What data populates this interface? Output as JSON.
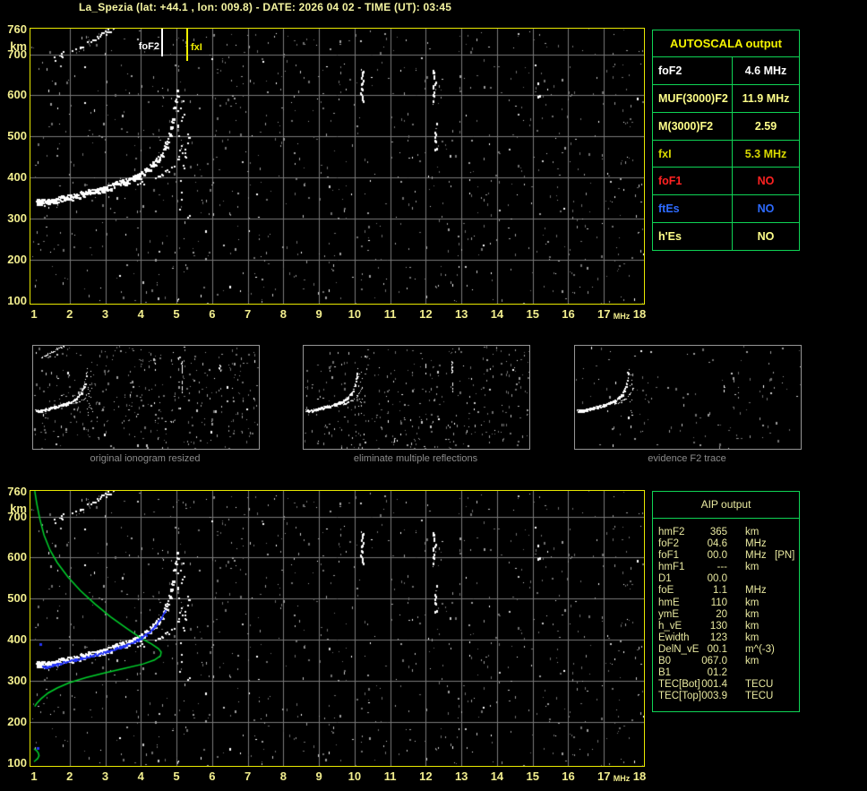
{
  "title": "La_Spezia (lat: +44.1 , lon: 009.8) - DATE: 2026 04 02 - TIME (UT): 03:45",
  "colors": {
    "background": "#000000",
    "title": "#f4f4a0",
    "plot_border": "#e9e900",
    "grid": "#7a7a7a",
    "tick_label": "#f2ee8e",
    "trace_white": "#ffffff",
    "noise_gray": "#9c9c9c",
    "table_border": "#0fd455",
    "autoscala_header": "#f4f400",
    "aip_text": "#e9e9a0",
    "caption_gray": "#8c8c8c",
    "profile_green": "#00d22c",
    "restored_blue": "#2535f5",
    "fof2_marker": "#ffffff",
    "fxi_marker": "#f0f000",
    "red": "#ff2222",
    "blue": "#2e6bff",
    "pale_yellow": "#ffff8a",
    "dark_yellow": "#d8d800"
  },
  "autoscala": {
    "title": "AUTOSCALA output",
    "rows": [
      {
        "label": "foF2",
        "value": "4.6 MHz",
        "color": "#ffffff"
      },
      {
        "label": "MUF(3000)F2",
        "value": "11.9 MHz",
        "color": "#ffff8a"
      },
      {
        "label": "M(3000)F2",
        "value": "2.59",
        "color": "#ffff8a"
      },
      {
        "label": "fxI",
        "value": "5.3 MHz",
        "color": "#d8d800"
      },
      {
        "label": "foF1",
        "value": "NO",
        "color": "#ff2222"
      },
      {
        "label": "ftEs",
        "value": "NO",
        "color": "#2e6bff"
      },
      {
        "label": "h'Es",
        "value": "NO",
        "color": "#ffff8a"
      }
    ]
  },
  "aip": {
    "title": "AIP output",
    "rows": [
      {
        "name": "hmF2",
        "value": "365",
        "unit": "km",
        "extra": ""
      },
      {
        "name": "foF2",
        "value": "04.6",
        "unit": "MHz",
        "extra": ""
      },
      {
        "name": "foF1",
        "value": "00.0",
        "unit": "MHz",
        "extra": "[PN]"
      },
      {
        "name": "hmF1",
        "value": "---",
        "unit": "km",
        "extra": ""
      },
      {
        "name": "D1",
        "value": "00.0",
        "unit": "",
        "extra": ""
      },
      {
        "name": "foE",
        "value": "1.1",
        "unit": "MHz",
        "extra": ""
      },
      {
        "name": "hmE",
        "value": "110",
        "unit": "km",
        "extra": ""
      },
      {
        "name": "ymE",
        "value": "20",
        "unit": "km",
        "extra": ""
      },
      {
        "name": "h_vE",
        "value": "130",
        "unit": "km",
        "extra": ""
      },
      {
        "name": "Ewidth",
        "value": "123",
        "unit": "km",
        "extra": ""
      },
      {
        "name": "DelN_vE",
        "value": "00.1",
        "unit": "m^(-3)",
        "extra": ""
      },
      {
        "name": "B0",
        "value": "067.0",
        "unit": "km",
        "extra": ""
      },
      {
        "name": "B1",
        "value": "01.2",
        "unit": "",
        "extra": ""
      },
      {
        "name": "TEC[Bot]",
        "value": "001.4",
        "unit": "TECU",
        "extra": ""
      },
      {
        "name": "TEC[Top]",
        "value": "003.9",
        "unit": "TECU",
        "extra": ""
      }
    ]
  },
  "thumbnails": [
    {
      "caption": "original ionogram resized"
    },
    {
      "caption": "eliminate multiple reflections"
    },
    {
      "caption": "evidence F2 trace"
    }
  ],
  "chart_data": {
    "type": "scatter",
    "title": "ionogram",
    "x_label": "MHz",
    "y_label": "km",
    "x_range": [
      1,
      18
    ],
    "y_range": [
      100,
      760
    ],
    "x_ticks": [
      "1",
      "2",
      "3",
      "4",
      "5",
      "6",
      "7",
      "8",
      "9",
      "10",
      "11",
      "12",
      "13",
      "14",
      "15",
      "16",
      "17",
      "18"
    ],
    "y_ticks": [
      760,
      700,
      600,
      500,
      400,
      300,
      200,
      100
    ],
    "grid_x_mhz": [
      2,
      3,
      4,
      5,
      6,
      7,
      8,
      9,
      10,
      11,
      12,
      13,
      14,
      15,
      16,
      17
    ],
    "grid_y_km": [
      200,
      300,
      400,
      500,
      600,
      700
    ],
    "fof2_label": "foF2",
    "fxi_label": "fxI",
    "fof2_line_mhz": 4.6,
    "fxi_line_mhz": 5.3,
    "f2_trace": [
      [
        1.05,
        345
      ],
      [
        1.3,
        340
      ],
      [
        1.6,
        346
      ],
      [
        2.0,
        355
      ],
      [
        2.4,
        363
      ],
      [
        2.8,
        372
      ],
      [
        3.2,
        382
      ],
      [
        3.6,
        394
      ],
      [
        3.9,
        406
      ],
      [
        4.15,
        420
      ],
      [
        4.35,
        436
      ],
      [
        4.5,
        452
      ],
      [
        4.62,
        470
      ],
      [
        4.72,
        492
      ],
      [
        4.8,
        515
      ],
      [
        4.87,
        542
      ],
      [
        4.93,
        572
      ],
      [
        4.98,
        602
      ],
      [
        5.01,
        625
      ]
    ],
    "second_hop": {
      "multiplier": 2,
      "f_range": [
        1.5,
        3.7
      ]
    },
    "x_mode_branch": {
      "f_offset_mhz": 0.6,
      "f_range": [
        3.3,
        4.75
      ]
    },
    "x_mode_asymptote": {
      "f_range": [
        5.0,
        5.35
      ],
      "h_range": [
        290,
        620
      ],
      "n": 26
    },
    "interference_streaks": [
      {
        "f": 10.2,
        "h": [
          585,
          668
        ],
        "p": 0.8
      },
      {
        "f": 12.22,
        "h": [
          588,
          668
        ],
        "p": 0.8
      },
      {
        "f": 12.26,
        "h": [
          470,
          540
        ],
        "p": 0.75
      },
      {
        "f": 15.15,
        "h": [
          598,
          645
        ],
        "p": 0.35
      }
    ],
    "profile_green": [
      [
        1.02,
        762
      ],
      [
        1.08,
        730
      ],
      [
        1.16,
        695
      ],
      [
        1.28,
        655
      ],
      [
        1.45,
        618
      ],
      [
        1.65,
        588
      ],
      [
        1.95,
        553
      ],
      [
        2.3,
        520
      ],
      [
        2.7,
        488
      ],
      [
        3.15,
        456
      ],
      [
        3.6,
        428
      ],
      [
        4.0,
        404
      ],
      [
        4.3,
        390
      ],
      [
        4.5,
        378
      ],
      [
        4.57,
        370
      ],
      [
        4.55,
        361
      ],
      [
        4.38,
        351
      ],
      [
        4.05,
        341
      ],
      [
        3.55,
        331
      ],
      [
        2.95,
        319
      ],
      [
        2.45,
        308
      ],
      [
        2.0,
        296
      ],
      [
        1.65,
        283
      ],
      [
        1.4,
        271
      ],
      [
        1.2,
        257
      ],
      [
        1.08,
        246
      ],
      [
        1.02,
        238
      ]
    ],
    "profile_e_layer": [
      [
        1.0,
        135
      ],
      [
        1.07,
        131
      ],
      [
        1.12,
        125
      ],
      [
        1.14,
        118
      ],
      [
        1.1,
        111
      ],
      [
        1.03,
        106
      ],
      [
        1.0,
        104
      ]
    ],
    "restored_trace_blue": {
      "f_range": [
        1.22,
        4.68
      ],
      "offset_km": -5,
      "outliers": [
        [
          1.15,
          392
        ],
        [
          1.08,
          140
        ]
      ]
    }
  }
}
